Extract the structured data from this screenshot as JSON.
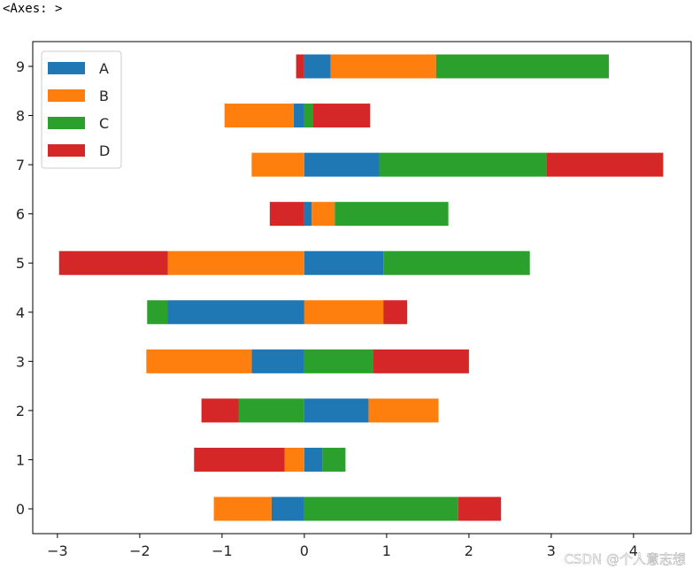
{
  "output_repr": "<Axes: >",
  "watermark": "CSDN @个人意志想",
  "chart_data": {
    "type": "bar",
    "orientation": "horizontal",
    "stacked": true,
    "categories": [
      "0",
      "1",
      "2",
      "3",
      "4",
      "5",
      "6",
      "7",
      "8",
      "9"
    ],
    "series": [
      {
        "name": "A",
        "color": "#1f77b4",
        "values": [
          -0.4,
          0.22,
          0.78,
          -0.64,
          -1.66,
          0.96,
          0.09,
          0.91,
          -0.13,
          0.32
        ]
      },
      {
        "name": "B",
        "color": "#ff7f0e",
        "values": [
          -0.7,
          -0.24,
          0.85,
          -1.28,
          0.96,
          -1.66,
          0.28,
          -0.64,
          -0.84,
          1.28
        ]
      },
      {
        "name": "C",
        "color": "#2ca02c",
        "values": [
          1.87,
          0.28,
          -0.8,
          0.84,
          -0.25,
          1.78,
          1.38,
          2.03,
          0.1,
          2.1
        ]
      },
      {
        "name": "D",
        "color": "#d62728",
        "values": [
          0.52,
          -1.1,
          -0.45,
          1.16,
          0.29,
          -1.32,
          -0.42,
          1.42,
          0.7,
          -0.1
        ]
      }
    ],
    "xlim": [
      -3.3,
      4.7
    ],
    "xticks": [
      -3,
      -2,
      -1,
      0,
      1,
      2,
      3,
      4
    ],
    "xtick_labels": [
      "−3",
      "−2",
      "−1",
      "0",
      "1",
      "2",
      "3",
      "4"
    ],
    "ytick_labels": [
      "0",
      "1",
      "2",
      "3",
      "4",
      "5",
      "6",
      "7",
      "8",
      "9"
    ],
    "grid": false,
    "legend": {
      "placement": "upper-left",
      "entries": [
        "A",
        "B",
        "C",
        "D"
      ]
    },
    "title": "",
    "xlabel": "",
    "ylabel": ""
  }
}
